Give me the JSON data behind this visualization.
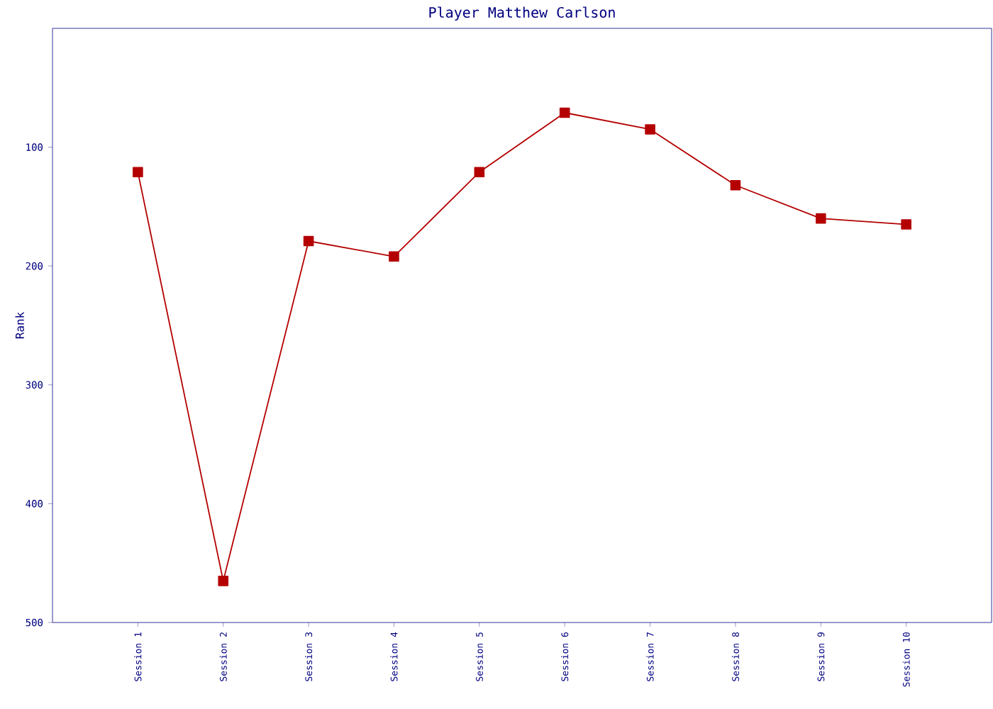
{
  "chart_data": {
    "type": "line",
    "title": "Player Matthew Carlson",
    "ylabel": "Rank",
    "categories": [
      "Session 1",
      "Session 2",
      "Session 3",
      "Session 4",
      "Session 5",
      "Session 6",
      "Session 7",
      "Session 8",
      "Session 9",
      "Session 10"
    ],
    "series": [
      {
        "color": "#b40000",
        "values": [
          121,
          465,
          179,
          192,
          121,
          71,
          85,
          132,
          160,
          165
        ]
      }
    ],
    "ylim": [
      500,
      0
    ],
    "yticks": [
      100,
      200,
      300,
      400,
      500
    ],
    "marker": "square",
    "line_style": "solid"
  }
}
